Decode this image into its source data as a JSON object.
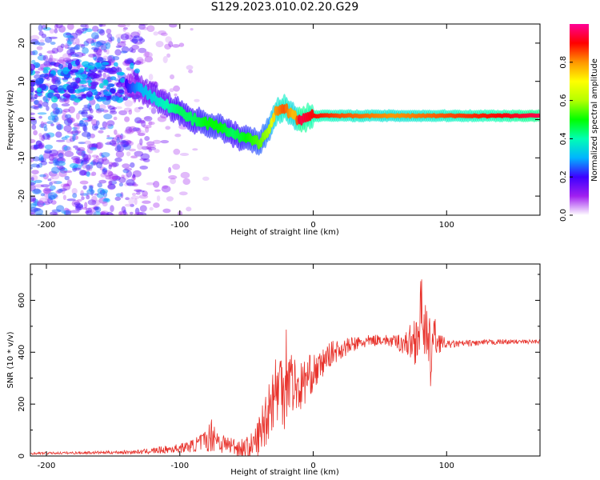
{
  "title": "S129.2023.010.02.20.G29",
  "colors": {
    "snr_line": "#e8332c",
    "background": "#ffffff",
    "axis": "#000000"
  },
  "chart_data": [
    {
      "type": "heatmap",
      "title": "S129.2023.010.02.20.G29",
      "xlabel": "Height of straight line (km)",
      "ylabel": "Frequency (Hz)",
      "xlim": [
        -212,
        170
      ],
      "ylim": [
        -25,
        25
      ],
      "x_ticks": [
        -200,
        -100,
        0,
        100
      ],
      "y_ticks": [
        -20,
        -10,
        0,
        10,
        20
      ],
      "colorbar": {
        "label": "Normalized spectral amplitude",
        "range": [
          0,
          1
        ],
        "ticks": [
          "0.0",
          "0.2",
          "0.4",
          "0.6",
          "0.8"
        ],
        "colormap": [
          "#ffffff",
          "#a020f0",
          "#3d00ff",
          "#00b4ff",
          "#00ffb4",
          "#00ff00",
          "#b4ff00",
          "#ffff00",
          "#ff9600",
          "#ff0000",
          "#ff0096"
        ]
      },
      "ridge": {
        "x": [
          -140,
          -130,
          -120,
          -110,
          -100,
          -90,
          -80,
          -70,
          -60,
          -50,
          -40,
          -33,
          -28,
          -22,
          -18,
          -14,
          -10,
          0,
          20,
          60,
          100,
          140,
          170
        ],
        "y": [
          9,
          8,
          6,
          4,
          2,
          0,
          -1,
          -2,
          -4,
          -5,
          -6,
          -2,
          2,
          3,
          2,
          1,
          0,
          1,
          1,
          1,
          1,
          1,
          1
        ],
        "peak_amplitude": [
          0.2,
          0.3,
          0.35,
          0.4,
          0.45,
          0.45,
          0.5,
          0.5,
          0.45,
          0.5,
          0.55,
          0.6,
          0.8,
          0.85,
          0.8,
          0.75,
          0.95,
          0.9,
          0.85,
          0.8,
          0.85,
          0.9,
          0.95
        ]
      }
    },
    {
      "type": "line",
      "xlabel": "Height of straight line (km)",
      "ylabel": "SNR (10 * v/v)",
      "xlim": [
        -212,
        170
      ],
      "ylim": [
        0,
        740
      ],
      "x_ticks": [
        -200,
        -100,
        0,
        100
      ],
      "y_ticks": [
        0,
        200,
        400,
        600
      ],
      "series": [
        {
          "x": [
            -212,
            -180,
            -150,
            -130,
            -120,
            -110,
            -100,
            -90,
            -80,
            -75,
            -70,
            -60,
            -55,
            -50,
            -45,
            -40,
            -35,
            -30,
            -25,
            -22,
            -20,
            -18,
            -15,
            -10,
            -5,
            0,
            5,
            10,
            15,
            20,
            25,
            30,
            40,
            50,
            60,
            70,
            75,
            80,
            82,
            85,
            88,
            90,
            95,
            100,
            120,
            140,
            160,
            170
          ],
          "y": [
            10,
            12,
            14,
            16,
            20,
            25,
            30,
            40,
            60,
            90,
            50,
            40,
            30,
            30,
            40,
            80,
            160,
            240,
            270,
            300,
            330,
            320,
            280,
            260,
            300,
            320,
            340,
            380,
            400,
            410,
            420,
            430,
            440,
            450,
            440,
            435,
            440,
            500,
            600,
            420,
            380,
            460,
            440,
            430,
            435,
            440,
            440,
            442
          ],
          "amplitude": [
            4,
            5,
            6,
            8,
            12,
            15,
            18,
            25,
            45,
            75,
            40,
            35,
            40,
            45,
            55,
            90,
            120,
            140,
            160,
            200,
            220,
            150,
            120,
            100,
            90,
            70,
            60,
            50,
            45,
            40,
            35,
            30,
            25,
            20,
            25,
            50,
            90,
            140,
            160,
            150,
            140,
            90,
            40,
            15,
            12,
            10,
            8,
            8
          ]
        }
      ]
    }
  ]
}
